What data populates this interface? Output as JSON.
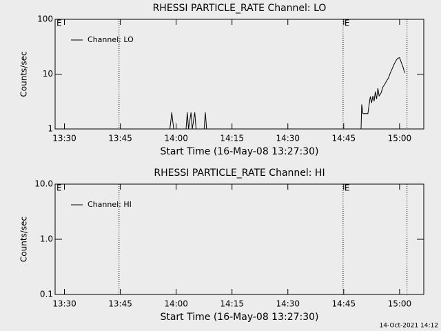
{
  "chart_data": [
    {
      "type": "line",
      "title": "RHESSI PARTICLE_RATE Channel: LO",
      "xlabel": "Start Time (16-May-08 13:27:30)",
      "ylabel": "Counts/sec",
      "log_y": true,
      "xlim": [
        "13:27:30",
        "15:06:30"
      ],
      "ylim": [
        1,
        100
      ],
      "xticks": [
        "13:30",
        "13:45",
        "14:00",
        "14:15",
        "14:30",
        "14:45",
        "15:00"
      ],
      "yticks": [
        1,
        10,
        100
      ],
      "vlines": [
        "13:44:40",
        "14:44:50",
        "15:02:00"
      ],
      "annotations": [
        {
          "text": "E",
          "x": "13:27:30"
        },
        {
          "text": "E",
          "x": "14:44:50"
        }
      ],
      "legend": "upper left",
      "series": [
        {
          "name": "Channel: LO",
          "color": "#000000",
          "x": [
            "13:58:20",
            "13:58:50",
            "13:59:20",
            null,
            "14:02:40",
            "14:03:00",
            "14:03:20",
            "14:04:00",
            "14:04:20",
            "14:05:00",
            "14:05:20",
            null,
            "14:07:30",
            "14:07:50",
            "14:08:10",
            null,
            "14:49:40",
            "14:49:50",
            "14:50:10",
            "14:51:30",
            "14:51:50",
            "14:52:10",
            "14:52:30",
            "14:52:50",
            "14:53:10",
            "14:53:30",
            "14:53:50",
            "14:54:10",
            "14:54:30",
            "14:55:00",
            "14:55:30",
            "14:56:00",
            "14:56:30",
            "14:57:00",
            "14:57:30",
            "14:58:00",
            "14:58:30",
            "14:59:00",
            "14:59:30",
            "15:00:00",
            "15:00:30",
            "15:01:00",
            "15:01:20"
          ],
          "values": [
            1,
            2,
            1,
            null,
            1,
            2,
            1,
            2,
            1,
            2,
            1,
            null,
            1,
            2,
            1,
            null,
            1,
            2.8,
            1.9,
            1.9,
            2.8,
            3.9,
            3,
            4,
            3.2,
            4.8,
            3.5,
            5.5,
            4,
            4.5,
            5.8,
            6.5,
            7.5,
            8.5,
            10.5,
            12.5,
            15,
            17.5,
            19.5,
            20,
            16,
            13,
            10.5
          ]
        }
      ]
    },
    {
      "type": "line",
      "title": "RHESSI PARTICLE_RATE Channel: HI",
      "xlabel": "Start Time (16-May-08 13:27:30)",
      "ylabel": "Counts/sec",
      "log_y": true,
      "xlim": [
        "13:27:30",
        "15:06:30"
      ],
      "ylim": [
        0.1,
        10
      ],
      "xticks": [
        "13:30",
        "13:45",
        "14:00",
        "14:15",
        "14:30",
        "14:45",
        "15:00"
      ],
      "yticks": [
        0.1,
        {
          "value": 1,
          "label": "1.0"
        },
        {
          "value": 10,
          "label": "10.0"
        }
      ],
      "vlines": [
        "13:44:40",
        "14:44:50",
        "15:02:00"
      ],
      "annotations": [
        {
          "text": "E",
          "x": "13:27:30"
        },
        {
          "text": "E",
          "x": "14:44:50"
        }
      ],
      "legend": "upper left",
      "series": [
        {
          "name": "Channel: HI",
          "color": "#000000",
          "x": [],
          "values": []
        }
      ]
    }
  ],
  "footer": "14-Oct-2021 14:12"
}
